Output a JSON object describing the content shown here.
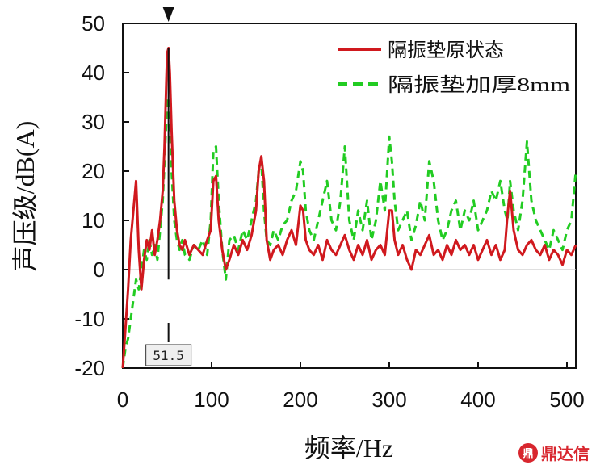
{
  "chart_data": {
    "type": "line",
    "xlabel": "频率/Hz",
    "ylabel": "声压级/dB(A)",
    "xlim": [
      0,
      510
    ],
    "ylim": [
      -20,
      50
    ],
    "xticks": [
      0,
      100,
      200,
      300,
      400,
      500
    ],
    "yticks": [
      -20,
      -10,
      0,
      10,
      20,
      30,
      40,
      50
    ],
    "legend_position": "top-right",
    "marker": {
      "x": 51.5,
      "label": "51.5"
    },
    "series": [
      {
        "name": "隔振垫原状态",
        "color": "#d0191e",
        "style": "solid",
        "x": [
          0,
          3,
          6,
          9,
          12,
          15,
          18,
          21,
          24,
          27,
          30,
          33,
          36,
          39,
          42,
          45,
          47,
          49,
          50,
          51.5,
          53,
          55,
          58,
          61,
          64,
          67,
          70,
          75,
          80,
          85,
          90,
          95,
          99,
          102,
          105,
          108,
          112,
          116,
          120,
          125,
          130,
          135,
          140,
          145,
          150,
          153,
          156,
          159,
          162,
          166,
          170,
          175,
          180,
          185,
          190,
          195,
          200,
          203,
          206,
          210,
          215,
          220,
          225,
          230,
          235,
          240,
          245,
          250,
          255,
          260,
          265,
          270,
          275,
          280,
          285,
          290,
          295,
          300,
          303,
          306,
          310,
          315,
          320,
          325,
          330,
          335,
          340,
          345,
          350,
          355,
          360,
          365,
          370,
          375,
          380,
          385,
          390,
          395,
          400,
          405,
          410,
          415,
          420,
          425,
          430,
          433,
          436,
          440,
          445,
          450,
          455,
          460,
          465,
          470,
          475,
          480,
          485,
          490,
          495,
          500,
          505,
          510
        ],
        "y": [
          -20,
          -12,
          -4,
          6,
          12,
          18,
          4,
          -4,
          2,
          6,
          4,
          8,
          3,
          6,
          10,
          16,
          25,
          38,
          44,
          45,
          40,
          28,
          14,
          8,
          5,
          4,
          6,
          3,
          5,
          4,
          3,
          6,
          8,
          18,
          19,
          10,
          4,
          0,
          2,
          5,
          3,
          6,
          4,
          7,
          12,
          20,
          23,
          18,
          6,
          2,
          4,
          5,
          3,
          6,
          8,
          5,
          13,
          12,
          6,
          4,
          3,
          5,
          2,
          6,
          4,
          3,
          5,
          7,
          4,
          2,
          5,
          3,
          6,
          2,
          4,
          5,
          3,
          12,
          12,
          6,
          3,
          5,
          2,
          0,
          4,
          3,
          5,
          7,
          3,
          4,
          2,
          5,
          3,
          6,
          4,
          5,
          3,
          5,
          2,
          4,
          6,
          3,
          5,
          2,
          4,
          11,
          16,
          8,
          4,
          3,
          5,
          6,
          4,
          3,
          5,
          2,
          4,
          3,
          1,
          4,
          3,
          5
        ]
      },
      {
        "name": "隔振垫加厚8mm",
        "color": "#22cc22",
        "style": "dashed",
        "x": [
          0,
          3,
          6,
          9,
          12,
          15,
          18,
          21,
          24,
          27,
          30,
          33,
          36,
          39,
          42,
          45,
          47,
          49,
          50,
          51.5,
          53,
          55,
          58,
          61,
          64,
          67,
          70,
          75,
          80,
          85,
          90,
          95,
          99,
          102,
          105,
          108,
          112,
          116,
          120,
          125,
          130,
          135,
          140,
          145,
          150,
          153,
          156,
          159,
          162,
          166,
          170,
          175,
          180,
          185,
          190,
          195,
          200,
          203,
          206,
          210,
          215,
          220,
          225,
          230,
          235,
          240,
          245,
          250,
          255,
          260,
          265,
          270,
          275,
          280,
          285,
          290,
          295,
          300,
          303,
          306,
          310,
          315,
          320,
          325,
          330,
          335,
          340,
          345,
          350,
          355,
          360,
          365,
          370,
          375,
          380,
          385,
          390,
          395,
          400,
          405,
          410,
          415,
          420,
          425,
          430,
          433,
          436,
          440,
          445,
          450,
          455,
          460,
          465,
          470,
          475,
          480,
          485,
          490,
          495,
          500,
          505,
          510
        ],
        "y": [
          -20,
          -16,
          -14,
          -10,
          -6,
          -2,
          -4,
          0,
          4,
          2,
          6,
          3,
          5,
          2,
          8,
          14,
          22,
          30,
          34,
          35,
          30,
          20,
          10,
          6,
          4,
          6,
          3,
          2,
          5,
          4,
          6,
          3,
          10,
          24,
          25,
          14,
          4,
          -2,
          6,
          7,
          4,
          8,
          6,
          10,
          14,
          20,
          22,
          12,
          6,
          5,
          8,
          6,
          9,
          10,
          14,
          16,
          22,
          20,
          12,
          8,
          6,
          10,
          14,
          18,
          10,
          8,
          14,
          25,
          10,
          6,
          12,
          8,
          14,
          6,
          10,
          18,
          12,
          27,
          22,
          14,
          8,
          10,
          12,
          6,
          9,
          14,
          10,
          22,
          18,
          10,
          6,
          8,
          12,
          14,
          8,
          12,
          10,
          14,
          8,
          10,
          12,
          16,
          14,
          18,
          12,
          10,
          18,
          12,
          8,
          14,
          26,
          14,
          10,
          8,
          6,
          4,
          8,
          6,
          4,
          8,
          10,
          20
        ]
      }
    ]
  },
  "watermark": {
    "icon_glyph": "鼎",
    "text": "鼎达信"
  }
}
